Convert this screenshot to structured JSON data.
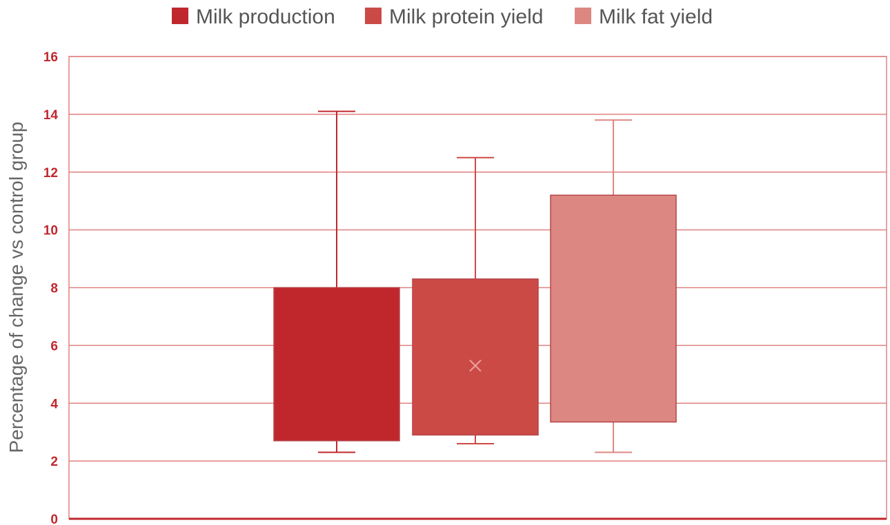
{
  "chart_data": {
    "type": "box",
    "title": "",
    "xlabel": "",
    "ylabel": "Percentage of change vs control group",
    "ylim": [
      0,
      16
    ],
    "yticks": [
      0,
      2,
      4,
      6,
      8,
      10,
      12,
      14,
      16
    ],
    "grid": true,
    "legend_position": "top",
    "series": [
      {
        "name": "Milk production",
        "min": 2.3,
        "q1": 2.7,
        "q3": 8.0,
        "max": 14.1,
        "color": "#c0272d"
      },
      {
        "name": "Milk protein yield",
        "min": 2.6,
        "q1": 2.9,
        "q3": 8.3,
        "max": 12.5,
        "mean": 5.3,
        "color": "#cc4a46"
      },
      {
        "name": "Milk fat yield",
        "min": 2.3,
        "q1": 3.35,
        "q3": 11.2,
        "max": 13.8,
        "color": "#dc8782"
      }
    ]
  }
}
